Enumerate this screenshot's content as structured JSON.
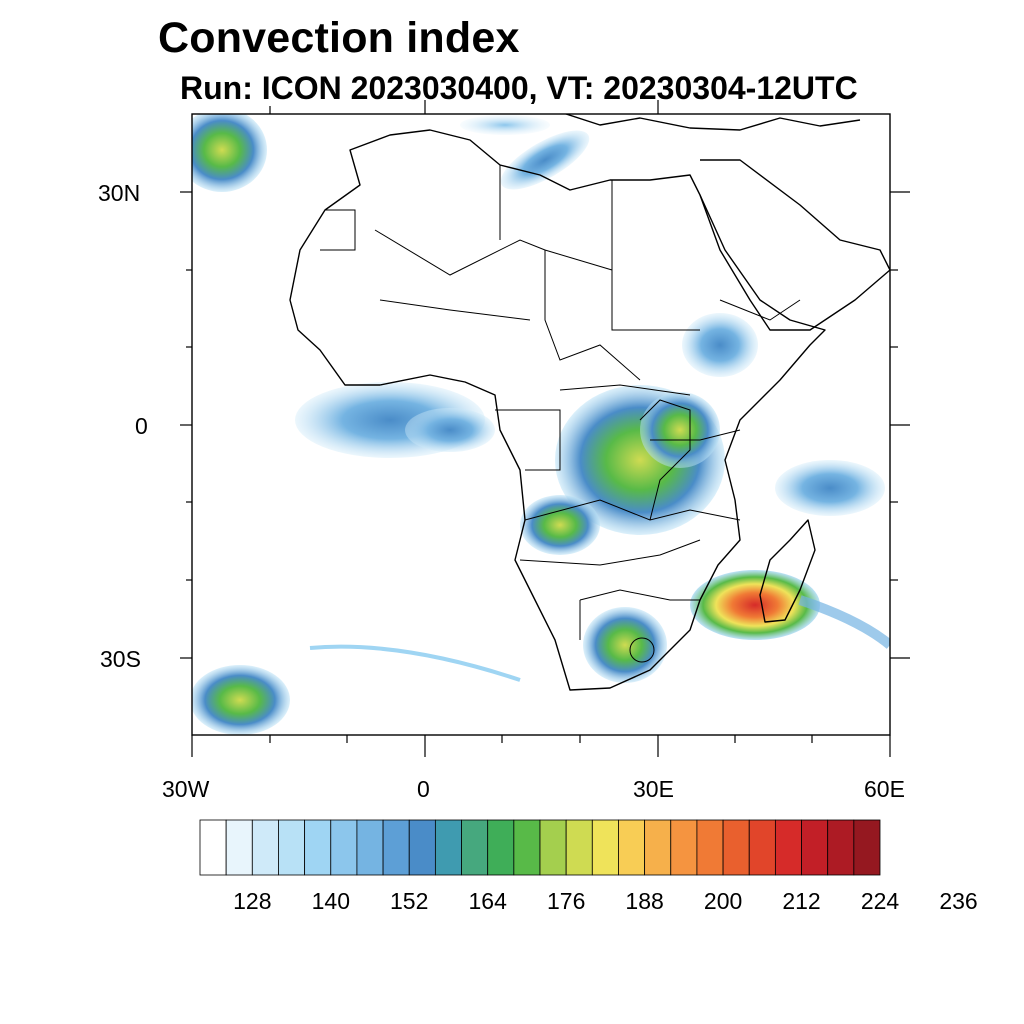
{
  "header": {
    "title": "Convection index",
    "subtitle": "Run: ICON 2023030400,  VT: 20230304-12UTC"
  },
  "map": {
    "region": "Africa",
    "lon_range": [
      -30,
      60
    ],
    "lat_range": [
      -40,
      40
    ],
    "lat_ticks": [
      "30N",
      "0",
      "30S"
    ],
    "lon_ticks": [
      "30W",
      "0",
      "30E",
      "60E"
    ]
  },
  "colorbar": {
    "labels": [
      "128",
      "140",
      "152",
      "164",
      "176",
      "188",
      "200",
      "212",
      "224",
      "236"
    ],
    "colors": [
      "#ffffff",
      "#e8f5fc",
      "#cfeaf9",
      "#b8e1f6",
      "#9fd5f3",
      "#8cc6ec",
      "#75b4e2",
      "#5d9fd6",
      "#4a8cc8",
      "#3f9bb0",
      "#46a87e",
      "#3fae58",
      "#58ba48",
      "#a4cf4e",
      "#cfdb52",
      "#efe35a",
      "#f8cd55",
      "#f6b04b",
      "#f59440",
      "#f07a35",
      "#e9602e",
      "#e1452a",
      "#d62b29",
      "#c21f27",
      "#ad1b24",
      "#951820"
    ]
  }
}
